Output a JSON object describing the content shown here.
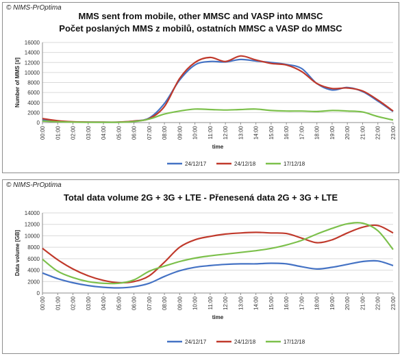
{
  "chart_data": [
    {
      "type": "line",
      "source": "© NIMS-PrOptima",
      "title": "MMS sent from mobile, other MMSC and VASP into MMSC",
      "subtitle": "Počet poslaných MMS z mobilů, ostatních MMSC a VASP do MMSC",
      "xlabel": "time",
      "ylabel": "Number of MMS [#]",
      "ylim": [
        0,
        16000
      ],
      "yticks": [
        "0",
        "2000",
        "4000",
        "6000",
        "8000",
        "10000",
        "12000",
        "14000",
        "16000"
      ],
      "grid": true,
      "legend_position": "bottom-center",
      "x": [
        "00:00",
        "01:00",
        "02:00",
        "03:00",
        "04:00",
        "05:00",
        "06:00",
        "07:00",
        "08:00",
        "09:00",
        "10:00",
        "11:00",
        "12:00",
        "13:00",
        "14:00",
        "15:00",
        "16:00",
        "17:00",
        "18:00",
        "19:00",
        "20:00",
        "21:00",
        "22:00",
        "23:00"
      ],
      "series": [
        {
          "name": "24/12/17",
          "color": "#4472c4",
          "values": [
            500,
            250,
            120,
            80,
            70,
            80,
            300,
            900,
            3800,
            8500,
            11500,
            12200,
            12100,
            12600,
            12300,
            12000,
            11600,
            10800,
            7800,
            6500,
            7000,
            6200,
            4300,
            2200
          ]
        },
        {
          "name": "24/12/18",
          "color": "#c0392b",
          "values": [
            800,
            350,
            150,
            100,
            80,
            100,
            300,
            800,
            3200,
            8800,
            12000,
            13000,
            12200,
            13300,
            12500,
            11800,
            11500,
            10200,
            7800,
            6800,
            6900,
            6300,
            4500,
            2300
          ]
        },
        {
          "name": "17/12/18",
          "color": "#7cc04b",
          "values": [
            300,
            150,
            80,
            50,
            50,
            60,
            200,
            700,
            1700,
            2300,
            2700,
            2600,
            2500,
            2600,
            2700,
            2400,
            2300,
            2300,
            2200,
            2400,
            2300,
            2100,
            1200,
            500
          ]
        }
      ]
    },
    {
      "type": "line",
      "source": "© NIMS-PrOptima",
      "title": "Total data volume 2G + 3G + LTE - Přenesená data 2G + 3G + LTE",
      "subtitle": "",
      "xlabel": "time",
      "ylabel": "Data volume [GB]",
      "ylim": [
        0,
        14000
      ],
      "yticks": [
        "0",
        "2000",
        "4000",
        "6000",
        "8000",
        "10000",
        "12000",
        "14000"
      ],
      "grid": true,
      "legend_position": "bottom-center",
      "x": [
        "00:00",
        "01:00",
        "02:00",
        "03:00",
        "04:00",
        "05:00",
        "06:00",
        "07:00",
        "08:00",
        "09:00",
        "10:00",
        "11:00",
        "12:00",
        "13:00",
        "14:00",
        "15:00",
        "16:00",
        "17:00",
        "18:00",
        "19:00",
        "20:00",
        "21:00",
        "22:00",
        "23:00"
      ],
      "series": [
        {
          "name": "24/12/17",
          "color": "#4472c4",
          "values": [
            3500,
            2500,
            1800,
            1300,
            1000,
            900,
            1100,
            1700,
            2900,
            3900,
            4500,
            4800,
            5000,
            5100,
            5100,
            5200,
            5100,
            4600,
            4200,
            4500,
            5000,
            5500,
            5600,
            4800
          ]
        },
        {
          "name": "24/12/18",
          "color": "#c0392b",
          "values": [
            7800,
            5800,
            4200,
            3000,
            2200,
            1800,
            2000,
            3000,
            5400,
            8000,
            9300,
            9900,
            10300,
            10500,
            10600,
            10500,
            10400,
            9600,
            8800,
            9300,
            10500,
            11500,
            11800,
            10500
          ]
        },
        {
          "name": "17/12/18",
          "color": "#7cc04b",
          "values": [
            5900,
            3800,
            2700,
            2000,
            1700,
            1700,
            2300,
            3800,
            4700,
            5500,
            6100,
            6500,
            6800,
            7100,
            7400,
            7800,
            8400,
            9200,
            10300,
            11300,
            12100,
            12200,
            10900,
            7600
          ]
        }
      ]
    }
  ]
}
